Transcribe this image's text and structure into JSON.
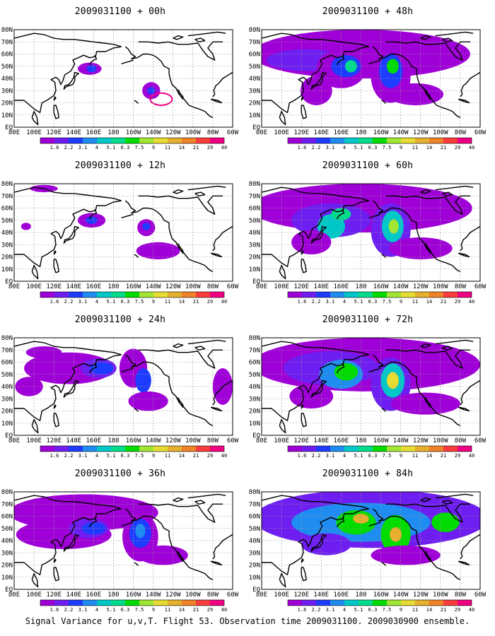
{
  "figure": {
    "footer": "Signal Variance for u,v,T. Flight 53. Observation time 2009031100. 2009030900 ensemble."
  },
  "axes": {
    "lat_labels": [
      "80N",
      "70N",
      "60N",
      "50N",
      "40N",
      "30N",
      "20N",
      "10N",
      "EQ"
    ],
    "lon_labels": [
      "80E",
      "100E",
      "120E",
      "140E",
      "160E",
      "180",
      "160W",
      "140W",
      "120W",
      "100W",
      "80W",
      "60W"
    ],
    "lon_range": [
      80,
      300
    ],
    "lat_range": [
      0,
      80
    ],
    "grid": true
  },
  "colorbar": {
    "values": [
      "1.6",
      "2.2",
      "3.1",
      "4",
      "5.1",
      "6.3",
      "7.5",
      "9",
      "11",
      "14",
      "21",
      "29",
      "40"
    ],
    "colors": [
      "#a000d8",
      "#6e1ef0",
      "#1e3cff",
      "#1e8cf0",
      "#00c8c8",
      "#00dc8c",
      "#00dc00",
      "#a0e632",
      "#e6dc32",
      "#e6af2d",
      "#f08228",
      "#fa3c3c",
      "#f00082"
    ]
  },
  "panels": [
    {
      "id": "p00",
      "title": "2009031100 + 00h",
      "blobs": [
        {
          "lon": 156,
          "lat": 48,
          "rx": 12,
          "ry": 5,
          "level": 0
        },
        {
          "lon": 158,
          "lat": 48,
          "rx": 5,
          "ry": 3,
          "level": 2
        },
        {
          "lon": 218,
          "lat": 30,
          "rx": 9,
          "ry": 7,
          "level": 0
        },
        {
          "lon": 218,
          "lat": 30,
          "rx": 4,
          "ry": 3,
          "level": 2
        }
      ],
      "contours": [
        {
          "lon": 228,
          "lat": 23,
          "rx": 11,
          "ry": 5
        }
      ]
    },
    {
      "id": "p12",
      "title": "2009031100 + 12h",
      "blobs": [
        {
          "lon": 158,
          "lat": 50,
          "rx": 14,
          "ry": 6,
          "level": 0
        },
        {
          "lon": 158,
          "lat": 50,
          "rx": 6,
          "ry": 3,
          "level": 2
        },
        {
          "lon": 213,
          "lat": 44,
          "rx": 9,
          "ry": 7,
          "level": 0
        },
        {
          "lon": 213,
          "lat": 45,
          "rx": 4,
          "ry": 3,
          "level": 2
        },
        {
          "lon": 225,
          "lat": 25,
          "rx": 22,
          "ry": 7,
          "level": 0
        },
        {
          "lon": 92,
          "lat": 45,
          "rx": 5,
          "ry": 3,
          "level": 0
        },
        {
          "lon": 110,
          "lat": 76,
          "rx": 14,
          "ry": 3,
          "level": 0
        }
      ],
      "contours": []
    },
    {
      "id": "p24",
      "title": "2009031100 + 24h",
      "blobs": [
        {
          "lon": 135,
          "lat": 55,
          "rx": 45,
          "ry": 13,
          "level": 0
        },
        {
          "lon": 165,
          "lat": 55,
          "rx": 18,
          "ry": 8,
          "level": 1
        },
        {
          "lon": 168,
          "lat": 55,
          "rx": 12,
          "ry": 5,
          "level": 2
        },
        {
          "lon": 200,
          "lat": 55,
          "rx": 14,
          "ry": 16,
          "level": 0
        },
        {
          "lon": 210,
          "lat": 45,
          "rx": 8,
          "ry": 10,
          "level": 2
        },
        {
          "lon": 215,
          "lat": 28,
          "rx": 20,
          "ry": 8,
          "level": 0
        },
        {
          "lon": 95,
          "lat": 40,
          "rx": 14,
          "ry": 8,
          "level": 0
        },
        {
          "lon": 110,
          "lat": 68,
          "rx": 18,
          "ry": 5,
          "level": 0
        },
        {
          "lon": 290,
          "lat": 40,
          "rx": 10,
          "ry": 15,
          "level": 0
        }
      ],
      "contours": []
    },
    {
      "id": "p36",
      "title": "2009031100 + 36h",
      "blobs": [
        {
          "lon": 150,
          "lat": 63,
          "rx": 75,
          "ry": 15,
          "level": 0
        },
        {
          "lon": 130,
          "lat": 45,
          "rx": 48,
          "ry": 12,
          "level": 0
        },
        {
          "lon": 155,
          "lat": 50,
          "rx": 20,
          "ry": 8,
          "level": 1
        },
        {
          "lon": 160,
          "lat": 50,
          "rx": 12,
          "ry": 5,
          "level": 2
        },
        {
          "lon": 207,
          "lat": 43,
          "rx": 18,
          "ry": 20,
          "level": 0
        },
        {
          "lon": 207,
          "lat": 46,
          "rx": 11,
          "ry": 12,
          "level": 2
        },
        {
          "lon": 207,
          "lat": 48,
          "rx": 5,
          "ry": 6,
          "level": 3
        },
        {
          "lon": 230,
          "lat": 28,
          "rx": 25,
          "ry": 8,
          "level": 0
        }
      ],
      "contours": []
    },
    {
      "id": "p48",
      "title": "2009031100 + 48h",
      "blobs": [
        {
          "lon": 180,
          "lat": 60,
          "rx": 110,
          "ry": 20,
          "level": 0
        },
        {
          "lon": 125,
          "lat": 55,
          "rx": 40,
          "ry": 9,
          "level": 1
        },
        {
          "lon": 160,
          "lat": 48,
          "rx": 25,
          "ry": 16,
          "level": 0
        },
        {
          "lon": 165,
          "lat": 50,
          "rx": 15,
          "ry": 9,
          "level": 2
        },
        {
          "lon": 170,
          "lat": 50,
          "rx": 6,
          "ry": 5,
          "level": 5
        },
        {
          "lon": 210,
          "lat": 42,
          "rx": 20,
          "ry": 22,
          "level": 0
        },
        {
          "lon": 210,
          "lat": 46,
          "rx": 12,
          "ry": 14,
          "level": 2
        },
        {
          "lon": 212,
          "lat": 50,
          "rx": 6,
          "ry": 6,
          "level": 6
        },
        {
          "lon": 135,
          "lat": 30,
          "rx": 16,
          "ry": 12,
          "level": 0
        },
        {
          "lon": 235,
          "lat": 27,
          "rx": 28,
          "ry": 9,
          "level": 0
        }
      ],
      "contours": []
    },
    {
      "id": "p60",
      "title": "2009031100 + 60h",
      "blobs": [
        {
          "lon": 180,
          "lat": 60,
          "rx": 112,
          "ry": 20,
          "level": 0
        },
        {
          "lon": 150,
          "lat": 50,
          "rx": 40,
          "ry": 14,
          "level": 1
        },
        {
          "lon": 150,
          "lat": 45,
          "rx": 14,
          "ry": 10,
          "level": 4
        },
        {
          "lon": 160,
          "lat": 55,
          "rx": 10,
          "ry": 5,
          "level": 5
        },
        {
          "lon": 210,
          "lat": 42,
          "rx": 20,
          "ry": 22,
          "level": 1
        },
        {
          "lon": 212,
          "lat": 45,
          "rx": 11,
          "ry": 13,
          "level": 4
        },
        {
          "lon": 213,
          "lat": 45,
          "rx": 5,
          "ry": 6,
          "level": 7
        },
        {
          "lon": 130,
          "lat": 32,
          "rx": 20,
          "ry": 10,
          "level": 0
        },
        {
          "lon": 240,
          "lat": 27,
          "rx": 32,
          "ry": 9,
          "level": 0
        }
      ],
      "contours": []
    },
    {
      "id": "p72",
      "title": "2009031100 + 72h",
      "blobs": [
        {
          "lon": 185,
          "lat": 58,
          "rx": 115,
          "ry": 22,
          "level": 0
        },
        {
          "lon": 150,
          "lat": 55,
          "rx": 48,
          "ry": 14,
          "level": 1
        },
        {
          "lon": 160,
          "lat": 50,
          "rx": 22,
          "ry": 12,
          "level": 3
        },
        {
          "lon": 165,
          "lat": 52,
          "rx": 12,
          "ry": 7,
          "level": 6
        },
        {
          "lon": 210,
          "lat": 42,
          "rx": 20,
          "ry": 22,
          "level": 1
        },
        {
          "lon": 212,
          "lat": 45,
          "rx": 12,
          "ry": 14,
          "level": 4
        },
        {
          "lon": 212,
          "lat": 45,
          "rx": 6,
          "ry": 7,
          "level": 8
        },
        {
          "lon": 130,
          "lat": 32,
          "rx": 22,
          "ry": 10,
          "level": 0
        },
        {
          "lon": 245,
          "lat": 26,
          "rx": 35,
          "ry": 9,
          "level": 0
        }
      ],
      "contours": []
    },
    {
      "id": "p84",
      "title": "2009031100 + 84h",
      "blobs": [
        {
          "lon": 190,
          "lat": 58,
          "rx": 118,
          "ry": 24,
          "level": 1
        },
        {
          "lon": 180,
          "lat": 55,
          "rx": 70,
          "ry": 16,
          "level": 3
        },
        {
          "lon": 175,
          "lat": 55,
          "rx": 20,
          "ry": 10,
          "level": 6
        },
        {
          "lon": 180,
          "lat": 58,
          "rx": 8,
          "ry": 4,
          "level": 9
        },
        {
          "lon": 215,
          "lat": 45,
          "rx": 15,
          "ry": 16,
          "level": 6
        },
        {
          "lon": 215,
          "lat": 45,
          "rx": 6,
          "ry": 6,
          "level": 9
        },
        {
          "lon": 265,
          "lat": 55,
          "rx": 14,
          "ry": 8,
          "level": 6
        },
        {
          "lon": 145,
          "lat": 37,
          "rx": 25,
          "ry": 9,
          "level": 1
        },
        {
          "lon": 225,
          "lat": 28,
          "rx": 35,
          "ry": 8,
          "level": 0
        }
      ],
      "contours": []
    }
  ]
}
